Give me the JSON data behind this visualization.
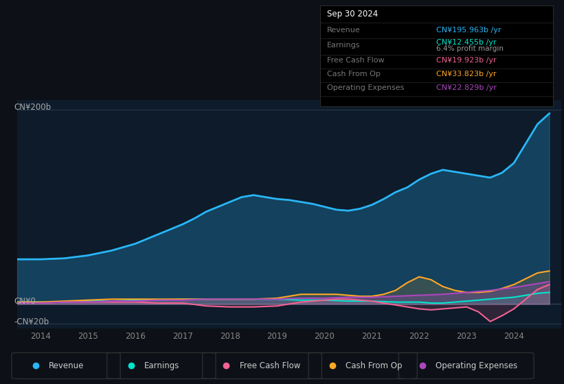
{
  "background_color": "#0d1117",
  "chart_bg_color": "#0d1b2a",
  "revenue_color": "#29b6f6",
  "earnings_color": "#00e5cc",
  "fcf_color": "#f06292",
  "cashfromop_color": "#ffa726",
  "opex_color": "#ab47bc",
  "legend_items": [
    {
      "label": "Revenue",
      "color": "#29b6f6"
    },
    {
      "label": "Earnings",
      "color": "#00e5cc"
    },
    {
      "label": "Free Cash Flow",
      "color": "#f06292"
    },
    {
      "label": "Cash From Op",
      "color": "#ffa726"
    },
    {
      "label": "Operating Expenses",
      "color": "#ab47bc"
    }
  ],
  "tooltip_revenue_color": "#29b6f6",
  "tooltip_earnings_color": "#00e5cc",
  "tooltip_fcf_color": "#f06292",
  "tooltip_cashfromop_color": "#ffa726",
  "tooltip_opex_color": "#ab47bc",
  "x_years": [
    2014,
    2015,
    2016,
    2017,
    2018,
    2019,
    2020,
    2021,
    2022,
    2023,
    2024
  ],
  "revenue_x": [
    2013.5,
    2014.0,
    2014.5,
    2015.0,
    2015.5,
    2016.0,
    2016.5,
    2017.0,
    2017.25,
    2017.5,
    2017.75,
    2018.0,
    2018.25,
    2018.5,
    2018.75,
    2019.0,
    2019.25,
    2019.5,
    2019.75,
    2020.0,
    2020.25,
    2020.5,
    2020.75,
    2021.0,
    2021.25,
    2021.5,
    2021.75,
    2022.0,
    2022.25,
    2022.5,
    2022.75,
    2023.0,
    2023.25,
    2023.5,
    2023.75,
    2024.0,
    2024.25,
    2024.5,
    2024.75
  ],
  "revenue_y": [
    46,
    46,
    47,
    50,
    55,
    62,
    72,
    82,
    88,
    95,
    100,
    105,
    110,
    112,
    110,
    108,
    107,
    105,
    103,
    100,
    97,
    96,
    98,
    102,
    108,
    115,
    120,
    128,
    134,
    138,
    136,
    134,
    132,
    130,
    135,
    145,
    165,
    185,
    196
  ],
  "earnings_x": [
    2013.5,
    2014.0,
    2014.5,
    2015.0,
    2015.5,
    2016.0,
    2016.5,
    2017.0,
    2017.5,
    2018.0,
    2018.5,
    2019.0,
    2019.5,
    2020.0,
    2020.5,
    2021.0,
    2021.5,
    2022.0,
    2022.25,
    2022.5,
    2022.75,
    2023.0,
    2023.25,
    2023.5,
    2023.75,
    2024.0,
    2024.25,
    2024.5,
    2024.75
  ],
  "earnings_y": [
    2,
    2,
    2,
    3,
    3,
    4,
    4,
    5,
    5,
    5,
    5,
    5,
    4,
    4,
    3,
    3,
    2,
    2,
    1,
    1,
    2,
    3,
    4,
    5,
    6,
    7,
    9,
    11,
    12
  ],
  "fcf_x": [
    2013.5,
    2014.0,
    2014.5,
    2015.0,
    2015.5,
    2016.0,
    2016.5,
    2017.0,
    2017.5,
    2018.0,
    2018.5,
    2019.0,
    2019.5,
    2020.0,
    2020.25,
    2020.5,
    2020.75,
    2021.0,
    2021.25,
    2021.5,
    2021.75,
    2022.0,
    2022.25,
    2022.5,
    2022.75,
    2023.0,
    2023.25,
    2023.5,
    2023.75,
    2024.0,
    2024.25,
    2024.5,
    2024.75
  ],
  "fcf_y": [
    1,
    1,
    2,
    2,
    2,
    2,
    1,
    1,
    -2,
    -3,
    -3,
    -2,
    2,
    4,
    5,
    5,
    4,
    3,
    1,
    -1,
    -3,
    -5,
    -6,
    -5,
    -4,
    -3,
    -8,
    -18,
    -12,
    -5,
    5,
    15,
    20
  ],
  "cashfromop_x": [
    2013.5,
    2014.0,
    2014.5,
    2015.0,
    2015.5,
    2016.0,
    2016.5,
    2017.0,
    2017.5,
    2018.0,
    2018.5,
    2019.0,
    2019.25,
    2019.5,
    2019.75,
    2020.0,
    2020.25,
    2020.5,
    2020.75,
    2021.0,
    2021.25,
    2021.5,
    2021.75,
    2022.0,
    2022.25,
    2022.5,
    2022.75,
    2023.0,
    2023.25,
    2023.5,
    2023.75,
    2024.0,
    2024.25,
    2024.5,
    2024.75
  ],
  "cashfromop_y": [
    2,
    2,
    3,
    4,
    5,
    5,
    5,
    5,
    5,
    5,
    5,
    6,
    8,
    10,
    10,
    10,
    10,
    9,
    8,
    8,
    10,
    14,
    22,
    28,
    25,
    18,
    14,
    12,
    12,
    13,
    16,
    20,
    26,
    32,
    34
  ],
  "opex_x": [
    2013.5,
    2014.0,
    2014.5,
    2015.0,
    2015.5,
    2016.0,
    2016.5,
    2017.0,
    2017.5,
    2018.0,
    2018.5,
    2019.0,
    2019.5,
    2020.0,
    2020.5,
    2021.0,
    2021.5,
    2022.0,
    2022.5,
    2023.0,
    2023.5,
    2024.0,
    2024.25,
    2024.5,
    2024.75
  ],
  "opex_y": [
    1,
    1,
    2,
    2,
    3,
    3,
    4,
    4,
    5,
    5,
    5,
    5,
    6,
    6,
    7,
    7,
    8,
    9,
    10,
    12,
    14,
    17,
    19,
    21,
    23
  ]
}
